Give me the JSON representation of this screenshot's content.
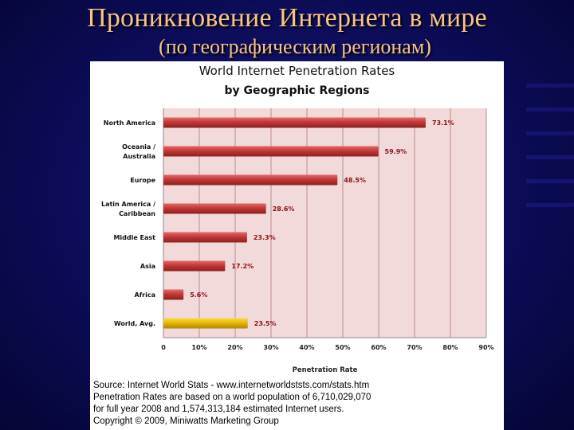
{
  "slide": {
    "title": "Проникновение Интернета в мире",
    "subtitle": "(по географическим регионам)"
  },
  "chart_data": {
    "type": "bar",
    "orientation": "horizontal",
    "title": "World Internet Penetration Rates",
    "subtitle": "by Geographic Regions",
    "categories": [
      [
        "North America"
      ],
      [
        "Oceania  /",
        "Australia"
      ],
      [
        "Europe"
      ],
      [
        "Latin America /",
        "Caribbean"
      ],
      [
        "Middle East"
      ],
      [
        "Asia"
      ],
      [
        "Africa"
      ],
      [
        "World, Avg."
      ]
    ],
    "values": [
      73.1,
      59.9,
      48.5,
      28.6,
      23.3,
      17.2,
      5.6,
      23.5
    ],
    "value_labels": [
      "73.1%",
      "59.9%",
      "48.5%",
      "28.6%",
      "23.3%",
      "17.2%",
      "5.6%",
      "23.5%"
    ],
    "highlight_index": 7,
    "xlabel": "Penetration Rate",
    "xlim": [
      0,
      90
    ],
    "xticks": [
      0,
      10,
      20,
      30,
      40,
      50,
      60,
      70,
      80,
      90
    ],
    "xtick_labels": [
      "0",
      "10%",
      "20%",
      "30%",
      "40%",
      "50%",
      "60%",
      "70%",
      "80%",
      "90%"
    ],
    "grid": true,
    "colors": {
      "bar": "#c23838",
      "bar_light": "#e46a6a",
      "bar_dark": "#8e1f1f",
      "highlight": "#e8b800",
      "highlight_light": "#f5dc55",
      "highlight_dark": "#b08600",
      "plot_bg": "#f2dada",
      "grid": "#b07878",
      "label": "#8b1010"
    }
  },
  "source": {
    "lines": [
      "Source: Internet World Stats - www.internetworldststs.com/stats.htm",
      "Penetration Rates are based on a world population of 6,710,029,070",
      "for full year 2008 and 1,574,313,184 estimated Internet users.",
      "Copyright © 2009, Miniwatts Marketing Group"
    ]
  }
}
